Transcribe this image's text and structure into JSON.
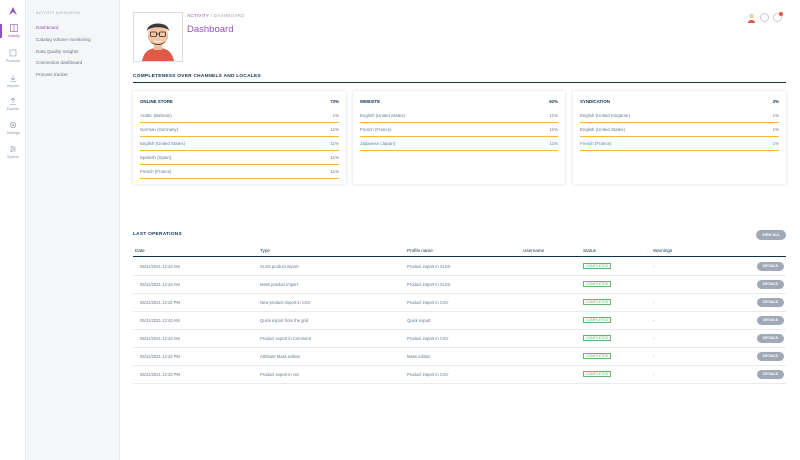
{
  "nav": {
    "items": [
      {
        "label": "Activity",
        "icon": "activity-icon"
      },
      {
        "label": "Products",
        "icon": "products-icon"
      },
      {
        "label": "Imports",
        "icon": "imports-icon"
      },
      {
        "label": "Exports",
        "icon": "exports-icon"
      },
      {
        "label": "Settings",
        "icon": "settings-icon"
      },
      {
        "label": "System",
        "icon": "system-icon"
      }
    ]
  },
  "subnav": {
    "title": "ACTIVITY NAVIGATION",
    "items": [
      "Dashboard",
      "Catalog volume monitoring",
      "Data Quality Insights",
      "Connection dashboard",
      "Process tracker"
    ]
  },
  "header": {
    "breadcrumb_parent": "ACTIVITY",
    "breadcrumb_sep": "/",
    "breadcrumb_current": "DASHBOARD",
    "title": "Dashboard"
  },
  "completeness": {
    "title": "COMPLETENESS OVER CHANNELS AND LOCALES",
    "channels": [
      {
        "name": "ONLINE STORE",
        "pct": "73%",
        "locales": [
          {
            "name": "Arabic (Bahrain)",
            "pct": "1%"
          },
          {
            "name": "German (Germany)",
            "pct": "11%"
          },
          {
            "name": "English (United States)",
            "pct": "11%"
          },
          {
            "name": "Spanish (Spain)",
            "pct": "11%"
          },
          {
            "name": "French (France)",
            "pct": "11%"
          }
        ]
      },
      {
        "name": "WEBSITE",
        "pct": "92%",
        "locales": [
          {
            "name": "English (United States)",
            "pct": "11%"
          },
          {
            "name": "French (France)",
            "pct": "11%"
          },
          {
            "name": "Japanese (Japan)",
            "pct": "11%"
          }
        ]
      },
      {
        "name": "SYNDICATION",
        "pct": "3%",
        "locales": [
          {
            "name": "English (United Kingdom)",
            "pct": "1%"
          },
          {
            "name": "English (United States)",
            "pct": "1%"
          },
          {
            "name": "French (France)",
            "pct": "1%"
          }
        ]
      }
    ]
  },
  "operations": {
    "title": "LAST OPERATIONS",
    "view_all": "VIEW ALL",
    "columns": [
      "Date",
      "Type",
      "Profile name",
      "Username",
      "Status",
      "Warnings"
    ],
    "details_label": "DETAILS",
    "rows": [
      {
        "date": "05/31/2021 12:43 AM",
        "type": "XLSX product import",
        "profile": "Product import in XLSX",
        "username": "",
        "status": "COMPLETED",
        "warnings": "-"
      },
      {
        "date": "05/31/2021 12:43 AM",
        "type": "Mass product import",
        "profile": "Product import in XLSX",
        "username": "",
        "status": "COMPLETED",
        "warnings": ""
      },
      {
        "date": "05/31/2021 12:32 PM",
        "type": "New product import in CSV",
        "profile": "Product import in CSV",
        "username": "",
        "status": "COMPLETED",
        "warnings": "-"
      },
      {
        "date": "05/31/2021 12:43 AM",
        "type": "Quick export from the grid",
        "profile": "Quick export",
        "username": "",
        "status": "COMPLETED",
        "warnings": "-"
      },
      {
        "date": "05/31/2021 12:43 AM",
        "type": "Product export in Comment",
        "profile": "Product import in CSV",
        "username": "",
        "status": "COMPLETED",
        "warnings": "-"
      },
      {
        "date": "05/31/2021 12:32 PM",
        "type": "Attribute Mass edition",
        "profile": "Mass edition",
        "username": "",
        "status": "COMPLETED",
        "warnings": "-"
      },
      {
        "date": "05/31/2021 12:43 PM",
        "type": "Product export in csv",
        "profile": "Product import in CSV",
        "username": "",
        "status": "COMPLETED",
        "warnings": "-"
      }
    ]
  },
  "colors": {
    "accent": "#9452ba",
    "status_ok": "#67b373",
    "locale_line": "#f9b53f",
    "dark": "#11324d"
  }
}
